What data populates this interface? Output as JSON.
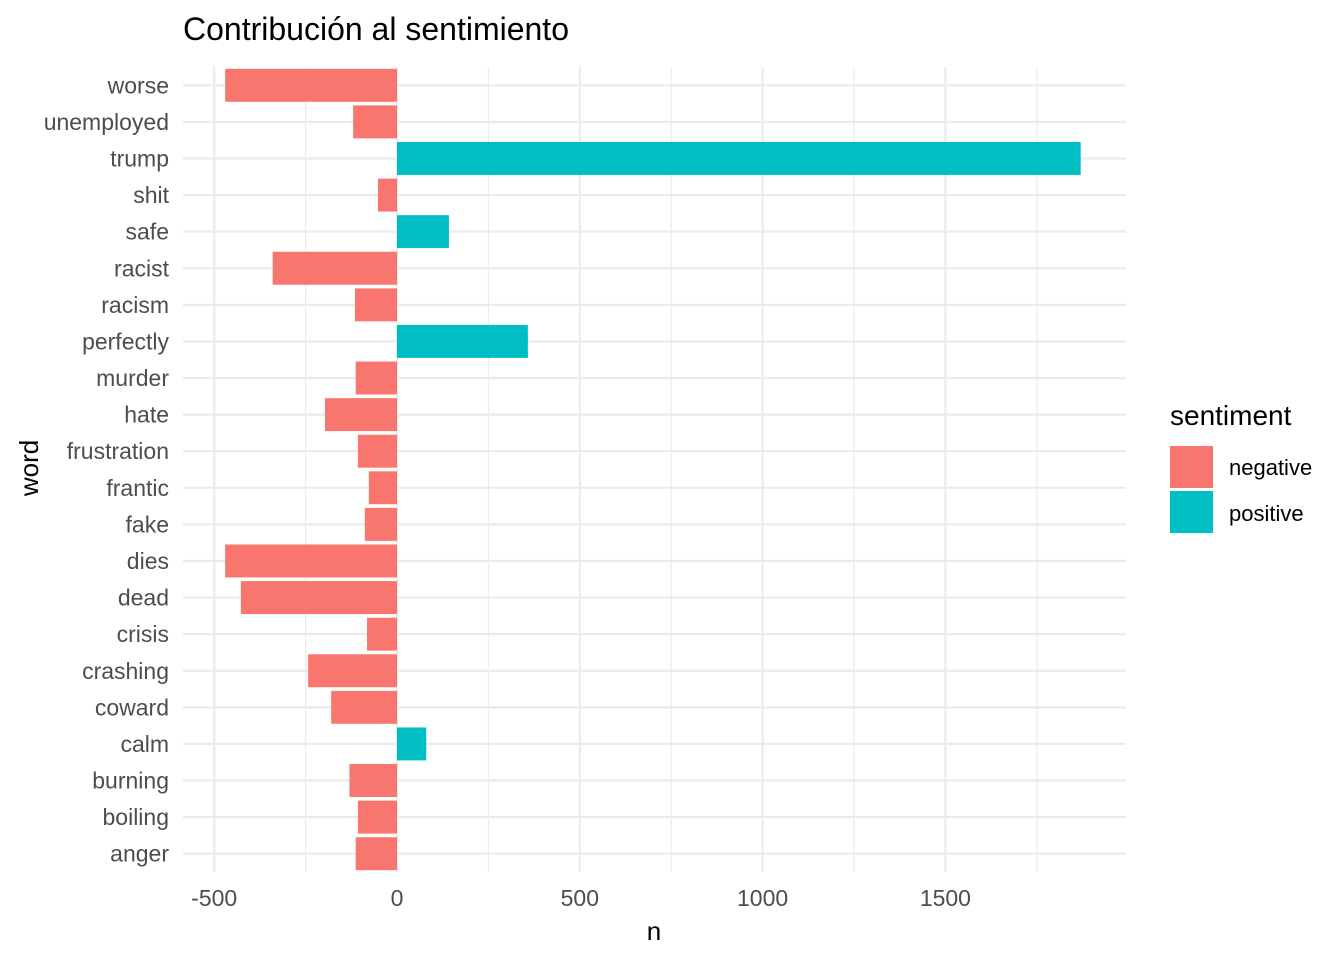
{
  "chart_data": {
    "type": "bar",
    "orientation": "horizontal",
    "title": "Contribución al sentimiento",
    "xlabel": "n",
    "ylabel": "word",
    "xlim": [
      -520,
      1990
    ],
    "x_ticks": [
      -500,
      0,
      500,
      1000,
      1500
    ],
    "x_tick_labels": [
      "-500",
      "0",
      "500",
      "1000",
      "1500"
    ],
    "grid": true,
    "legend": {
      "title": "sentiment",
      "position": "right",
      "entries": [
        {
          "key": "negative",
          "label": "negative",
          "color": "#F8766D"
        },
        {
          "key": "positive",
          "label": "positive",
          "color": "#00BFC4"
        }
      ]
    },
    "categories": [
      "worse",
      "unemployed",
      "trump",
      "shit",
      "safe",
      "racist",
      "racism",
      "perfectly",
      "murder",
      "hate",
      "frustration",
      "frantic",
      "fake",
      "dies",
      "dead",
      "crisis",
      "crashing",
      "coward",
      "calm",
      "burning",
      "boiling",
      "anger"
    ],
    "values": [
      -470,
      -120,
      1870,
      -52,
      142,
      -340,
      -115,
      358,
      -113,
      -197,
      -107,
      -77,
      -88,
      -470,
      -427,
      -82,
      -243,
      -180,
      80,
      -130,
      -107,
      -113
    ],
    "sentiments": [
      "negative",
      "negative",
      "positive",
      "negative",
      "positive",
      "negative",
      "negative",
      "positive",
      "negative",
      "negative",
      "negative",
      "negative",
      "negative",
      "negative",
      "negative",
      "negative",
      "negative",
      "negative",
      "positive",
      "negative",
      "negative",
      "negative"
    ]
  }
}
